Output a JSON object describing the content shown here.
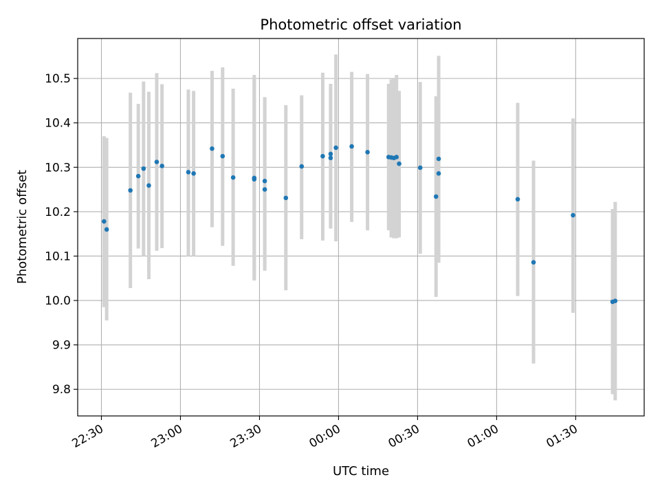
{
  "chart_data": {
    "type": "scatter",
    "title": "Photometric offset variation",
    "xlabel": "UTC time",
    "ylabel": "Photometric offset",
    "x_unit": "UTC time (hh:mm), 22:30 to 01:45",
    "x_ticks": [
      "22:30",
      "23:00",
      "23:30",
      "00:00",
      "00:30",
      "01:00",
      "01:30"
    ],
    "y_ticks": [
      "9.8",
      "9.9",
      "10.0",
      "10.1",
      "10.2",
      "10.3",
      "10.4",
      "10.5"
    ],
    "ylim": [
      9.74,
      10.59
    ],
    "grid": true,
    "colors": {
      "point": "#1f77b4",
      "errorbar": "#d3d3d3",
      "grid": "#b0b0b0"
    },
    "points": [
      {
        "x": "22:31",
        "y": 10.178,
        "lo": 9.985,
        "hi": 10.37
      },
      {
        "x": "22:32",
        "y": 10.16,
        "lo": 9.955,
        "hi": 10.366
      },
      {
        "x": "22:41",
        "y": 10.248,
        "lo": 10.028,
        "hi": 10.468
      },
      {
        "x": "22:44",
        "y": 10.28,
        "lo": 10.117,
        "hi": 10.443
      },
      {
        "x": "22:46",
        "y": 10.297,
        "lo": 10.1,
        "hi": 10.493
      },
      {
        "x": "22:48",
        "y": 10.259,
        "lo": 10.048,
        "hi": 10.47
      },
      {
        "x": "22:51",
        "y": 10.312,
        "lo": 10.112,
        "hi": 10.512
      },
      {
        "x": "22:53",
        "y": 10.303,
        "lo": 10.118,
        "hi": 10.487
      },
      {
        "x": "23:03",
        "y": 10.289,
        "lo": 10.1,
        "hi": 10.475
      },
      {
        "x": "23:05",
        "y": 10.286,
        "lo": 10.1,
        "hi": 10.472
      },
      {
        "x": "23:12",
        "y": 10.342,
        "lo": 10.165,
        "hi": 10.517
      },
      {
        "x": "23:16",
        "y": 10.325,
        "lo": 10.123,
        "hi": 10.525
      },
      {
        "x": "23:20",
        "y": 10.277,
        "lo": 10.078,
        "hi": 10.477
      },
      {
        "x": "23:28",
        "y": 10.276,
        "lo": 10.045,
        "hi": 10.508
      },
      {
        "x": "23:28",
        "y": 10.273,
        "lo": 10.05,
        "hi": 10.5
      },
      {
        "x": "23:32",
        "y": 10.25,
        "lo": 10.067,
        "hi": 10.458
      },
      {
        "x": "23:32",
        "y": 10.269,
        "lo": 10.078,
        "hi": 10.455
      },
      {
        "x": "23:40",
        "y": 10.231,
        "lo": 10.023,
        "hi": 10.44
      },
      {
        "x": "23:46",
        "y": 10.302,
        "lo": 10.138,
        "hi": 10.462
      },
      {
        "x": "23:54",
        "y": 10.325,
        "lo": 10.135,
        "hi": 10.513
      },
      {
        "x": "23:57",
        "y": 10.33,
        "lo": 10.165,
        "hi": 10.488
      },
      {
        "x": "23:57",
        "y": 10.321,
        "lo": 10.162,
        "hi": 10.48
      },
      {
        "x": "23:59",
        "y": 10.344,
        "lo": 10.133,
        "hi": 10.554
      },
      {
        "x": "00:05",
        "y": 10.347,
        "lo": 10.177,
        "hi": 10.515
      },
      {
        "x": "00:11",
        "y": 10.334,
        "lo": 10.158,
        "hi": 10.51
      },
      {
        "x": "00:19",
        "y": 10.323,
        "lo": 10.158,
        "hi": 10.488
      },
      {
        "x": "00:20",
        "y": 10.322,
        "lo": 10.142,
        "hi": 10.498
      },
      {
        "x": "00:21",
        "y": 10.321,
        "lo": 10.14,
        "hi": 10.5
      },
      {
        "x": "00:22",
        "y": 10.323,
        "lo": 10.14,
        "hi": 10.508
      },
      {
        "x": "00:23",
        "y": 10.308,
        "lo": 10.142,
        "hi": 10.472
      },
      {
        "x": "00:31",
        "y": 10.299,
        "lo": 10.105,
        "hi": 10.492
      },
      {
        "x": "00:37",
        "y": 10.234,
        "lo": 10.008,
        "hi": 10.46
      },
      {
        "x": "00:38",
        "y": 10.286,
        "lo": 10.085,
        "hi": 10.487
      },
      {
        "x": "00:38",
        "y": 10.319,
        "lo": 10.088,
        "hi": 10.551
      },
      {
        "x": "01:08",
        "y": 10.228,
        "lo": 10.01,
        "hi": 10.445
      },
      {
        "x": "01:14",
        "y": 10.086,
        "lo": 9.858,
        "hi": 10.315
      },
      {
        "x": "01:29",
        "y": 10.192,
        "lo": 9.972,
        "hi": 10.41
      },
      {
        "x": "01:44",
        "y": 9.997,
        "lo": 9.789,
        "hi": 10.206
      },
      {
        "x": "01:45",
        "y": 9.999,
        "lo": 9.775,
        "hi": 10.222
      }
    ]
  }
}
